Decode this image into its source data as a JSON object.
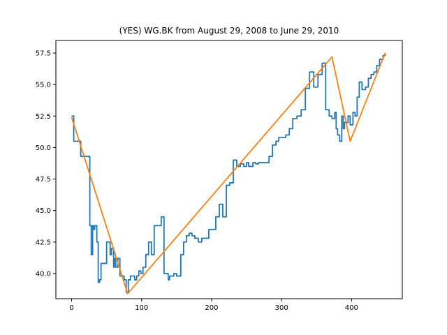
{
  "chart_data": {
    "type": "line",
    "title": "(YES) WG.BK from August 29, 2008 to June 29, 2010",
    "xlabel": "",
    "ylabel": "",
    "xlim": [
      -22.5,
      472.5
    ],
    "ylim": [
      38.0,
      58.5
    ],
    "x_ticks": [
      0,
      100,
      200,
      300,
      400
    ],
    "y_ticks": [
      40.0,
      42.5,
      45.0,
      47.5,
      50.0,
      52.5,
      55.0,
      57.5
    ],
    "y_tick_labels": [
      "40.0",
      "42.5",
      "45.0",
      "47.5",
      "50.0",
      "52.5",
      "55.0",
      "57.5"
    ],
    "grid": false,
    "legend": "none",
    "series": [
      {
        "color": "#1f77b4",
        "step": true,
        "x": [
          0,
          2,
          3,
          13,
          15,
          25,
          26,
          28,
          30,
          31,
          33,
          36,
          38,
          40,
          42,
          46,
          50,
          55,
          57,
          60,
          61,
          63,
          66,
          69,
          72,
          75,
          78,
          81,
          84,
          87,
          90,
          93,
          96,
          99,
          102,
          106,
          110,
          114,
          118,
          123,
          128,
          132,
          138,
          140,
          146,
          150,
          156,
          160,
          164,
          168,
          172,
          176,
          181,
          186,
          191,
          196,
          201,
          206,
          211,
          216,
          221,
          226,
          231,
          236,
          241,
          246,
          250,
          253,
          256,
          259,
          263,
          267,
          272,
          277,
          282,
          287,
          292,
          296,
          300,
          306,
          311,
          316,
          322,
          328,
          334,
          340,
          346,
          352,
          358,
          363,
          368,
          372,
          376,
          378,
          380,
          383,
          385,
          386,
          388,
          390,
          395,
          398,
          402,
          405,
          408,
          411,
          415,
          420,
          424,
          428,
          432,
          436,
          440,
          445,
          448
        ],
        "values": [
          52.5,
          52.5,
          50.5,
          49.3,
          49.3,
          49.3,
          43.8,
          41.5,
          43.8,
          43.5,
          43.8,
          42.5,
          39.3,
          39.5,
          40.8,
          40.8,
          42.5,
          41.5,
          42.0,
          40.5,
          41.2,
          40.5,
          41.2,
          39.8,
          39.8,
          39.5,
          38.5,
          39.5,
          39.8,
          39.8,
          39.5,
          39.8,
          40.2,
          40.0,
          40.5,
          41.5,
          42.5,
          41.5,
          43.8,
          43.8,
          44.5,
          40.0,
          39.5,
          39.8,
          40.0,
          39.8,
          41.5,
          42.5,
          43.0,
          43.2,
          43.0,
          42.8,
          42.5,
          42.8,
          42.8,
          43.5,
          43.5,
          44.5,
          45.5,
          44.5,
          47.0,
          47.2,
          49.0,
          48.5,
          48.7,
          48.5,
          48.8,
          48.5,
          48.5,
          48.8,
          48.7,
          48.8,
          48.8,
          48.8,
          49.3,
          50.2,
          50.5,
          50.8,
          50.8,
          51.0,
          51.5,
          52.3,
          52.5,
          53.0,
          54.7,
          56.0,
          54.8,
          55.8,
          56.7,
          53.0,
          52.5,
          52.3,
          52.8,
          51.5,
          51.0,
          50.5,
          50.5,
          52.5,
          51.5,
          52.0,
          52.5,
          51.8,
          52.8,
          52.5,
          54.0,
          55.2,
          54.6,
          54.8,
          55.5,
          55.8,
          56.0,
          56.5,
          57.0,
          57.3,
          57.5
        ]
      },
      {
        "color": "#ff7f0e",
        "step": false,
        "x": [
          0,
          55,
          80,
          372,
          398,
          448
        ],
        "values": [
          52.4,
          42.8,
          38.4,
          57.2,
          50.5,
          57.5
        ]
      }
    ]
  }
}
